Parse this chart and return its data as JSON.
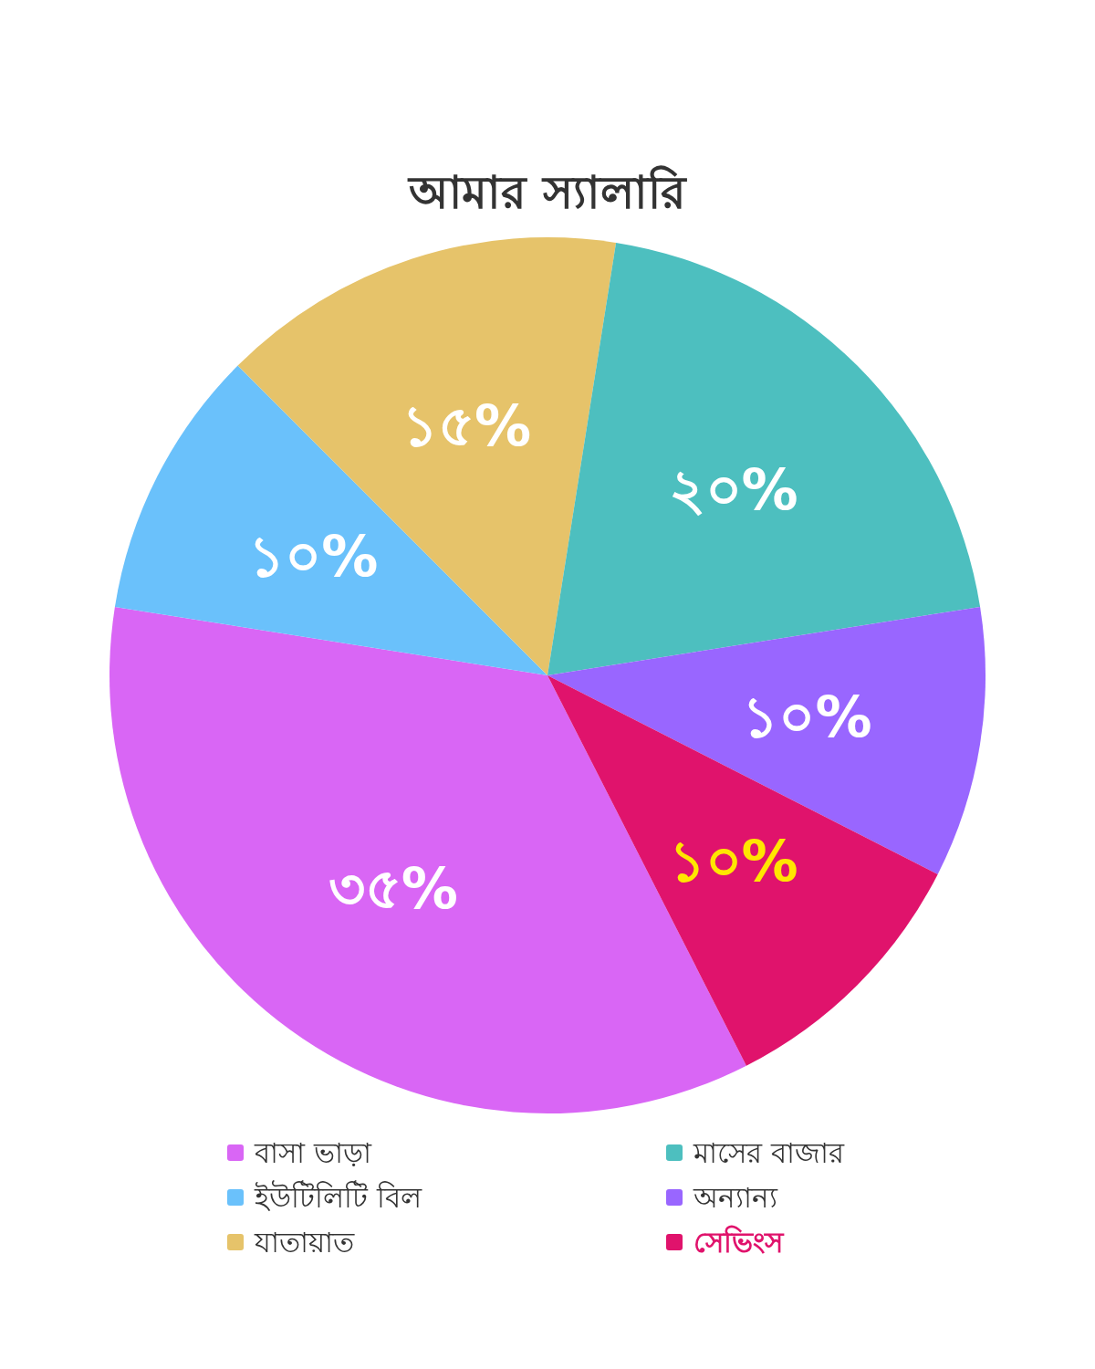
{
  "chart_data": {
    "type": "pie",
    "title": "আমার স্যালারি",
    "categories": [
      "বাসা ভাড়া",
      "ইউটিলিটি বিল",
      "যাতায়াত",
      "মাসের বাজার",
      "অন্যান্য",
      "সেভিংস"
    ],
    "values": [
      35,
      10,
      15,
      20,
      10,
      10
    ],
    "colors": [
      "#d966f5",
      "#6ac1fb",
      "#e6c36a",
      "#4dbfbf",
      "#9966ff",
      "#e0136c"
    ],
    "value_labels": [
      "৩৫%",
      "১০%",
      "১৫%",
      "২০%",
      "১০%",
      "১০%"
    ],
    "legend": "bottom"
  }
}
